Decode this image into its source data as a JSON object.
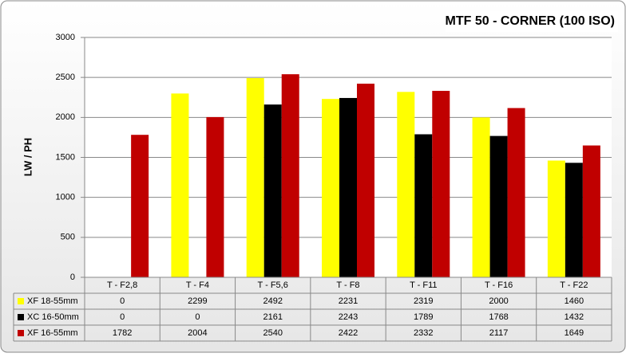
{
  "chart_data": {
    "type": "bar",
    "title": "MTF 50 - CORNER (100 ISO)",
    "y_label": "LW / PH",
    "categories": [
      "T - F2,8",
      "T - F4",
      "T - F5,6",
      "T - F8",
      "T - F11",
      "T - F16",
      "T - F22"
    ],
    "series": [
      {
        "name": "XF 18-55mm",
        "color": "#ffff00",
        "values": [
          0,
          2299,
          2492,
          2231,
          2319,
          2000,
          1460
        ]
      },
      {
        "name": "XC 16-50mm",
        "color": "#000000",
        "values": [
          0,
          0,
          2161,
          2243,
          1789,
          1768,
          1432
        ]
      },
      {
        "name": "XF 16-55mm",
        "color": "#c00000",
        "values": [
          1782,
          2004,
          2540,
          2422,
          2332,
          2117,
          1649
        ]
      }
    ],
    "ylim": [
      0,
      3000
    ],
    "yticks": [
      0,
      500,
      1000,
      1500,
      2000,
      2500,
      3000
    ],
    "grid": true,
    "data_table": true
  }
}
